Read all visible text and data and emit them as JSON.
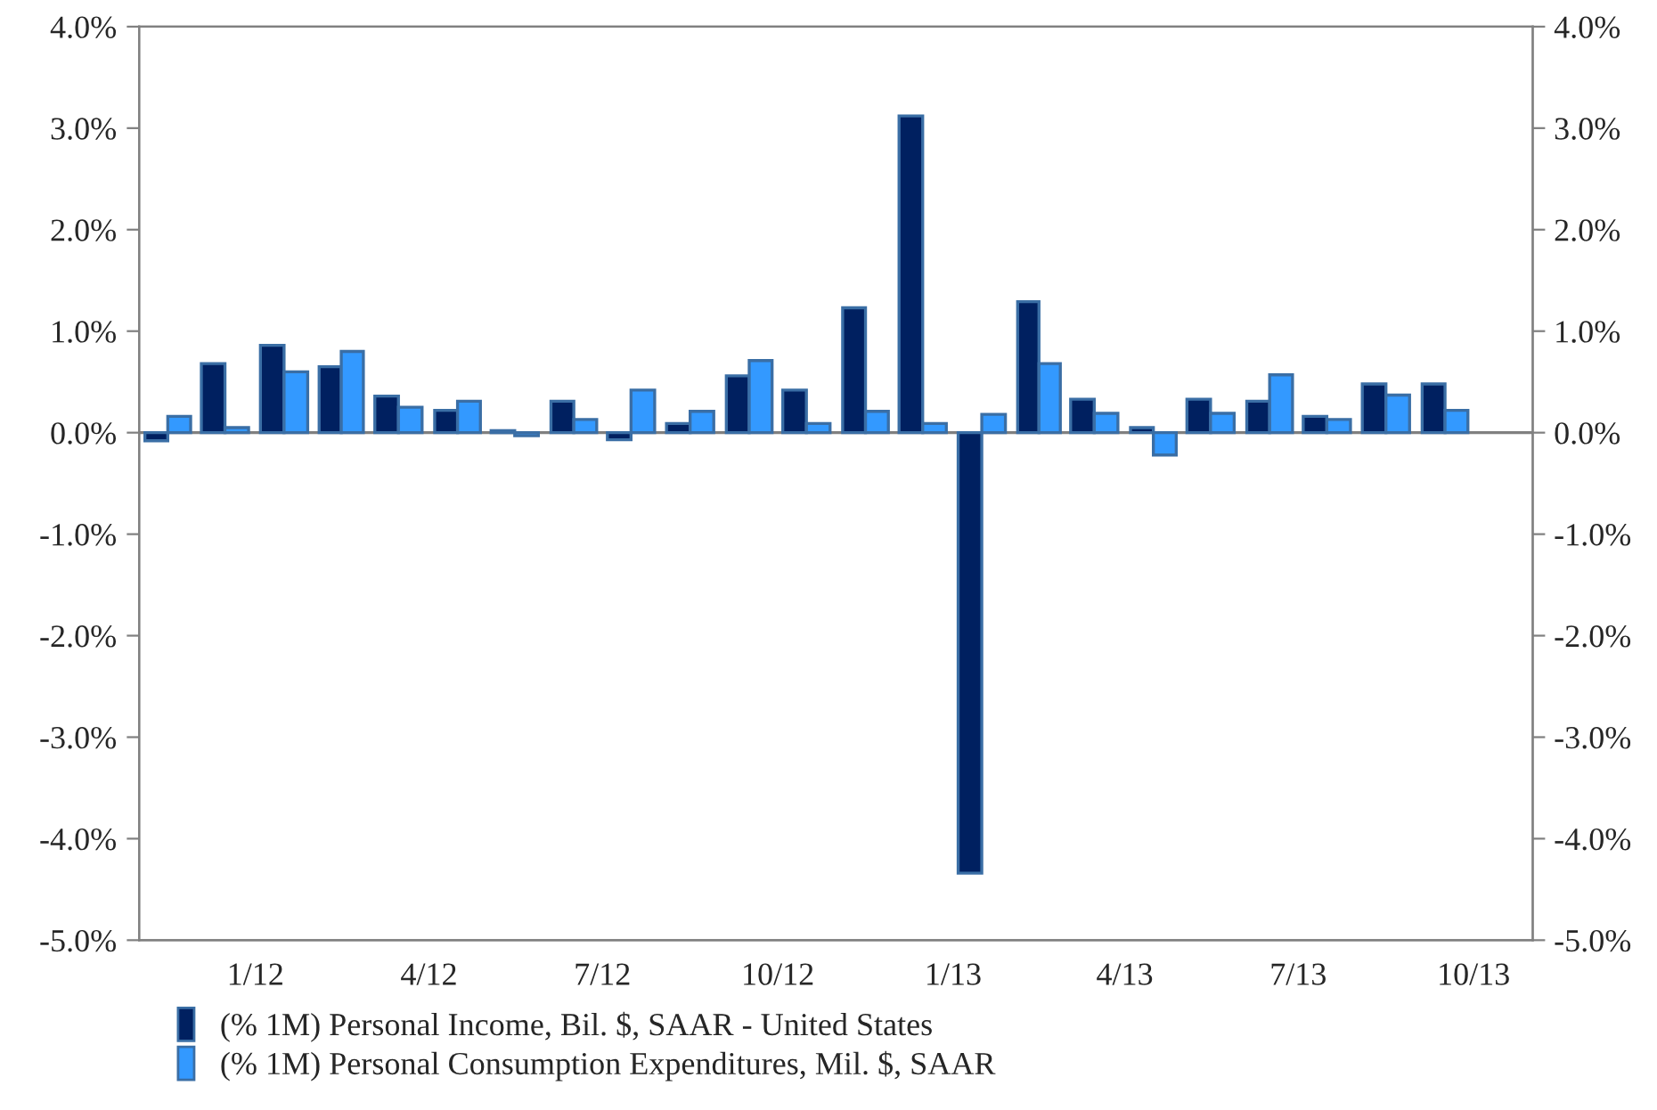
{
  "chart_data": {
    "type": "bar",
    "x": [
      "2011-11-16",
      "2011-12-16",
      "2012-01-16",
      "2012-02-15",
      "2012-03-16",
      "2012-04-16",
      "2012-05-16",
      "2012-06-16",
      "2012-07-16",
      "2012-08-16",
      "2012-09-16",
      "2012-10-16",
      "2012-11-16",
      "2012-12-16",
      "2013-01-16",
      "2013-02-15",
      "2013-03-16",
      "2013-04-16",
      "2013-05-16",
      "2013-06-16",
      "2013-07-16",
      "2013-08-16",
      "2013-09-16"
    ],
    "series": [
      {
        "name": "(% 1M) Personal Income, Bil. $, SAAR - United States",
        "color": "#002060",
        "values": [
          -0.08,
          0.68,
          0.86,
          0.65,
          0.36,
          0.22,
          0.02,
          0.31,
          -0.07,
          0.09,
          0.56,
          0.42,
          1.23,
          3.12,
          -4.34,
          1.29,
          0.33,
          0.05,
          0.33,
          0.31,
          0.16,
          0.48,
          0.48
        ]
      },
      {
        "name": "(% 1M) Personal Consumption Expenditures, Mil. $, SAAR",
        "color": "#3399ff",
        "values": [
          0.16,
          0.05,
          0.6,
          0.8,
          0.25,
          0.31,
          -0.03,
          0.13,
          0.42,
          0.21,
          0.71,
          0.09,
          0.21,
          0.09,
          0.18,
          0.68,
          0.19,
          -0.22,
          0.19,
          0.57,
          0.13,
          0.37,
          0.22
        ]
      }
    ],
    "xlim": [
      "2011-11",
      "2013-11"
    ],
    "xticks": [
      {
        "value": "2012-01",
        "label": "1/12"
      },
      {
        "value": "2012-04",
        "label": "4/12"
      },
      {
        "value": "2012-07",
        "label": "7/12"
      },
      {
        "value": "2012-10",
        "label": "10/12"
      },
      {
        "value": "2013-01",
        "label": "1/13"
      },
      {
        "value": "2013-04",
        "label": "4/13"
      },
      {
        "value": "2013-07",
        "label": "7/13"
      },
      {
        "value": "2013-10",
        "label": "10/13"
      }
    ],
    "ylim": [
      -5,
      4
    ],
    "yticks": [
      {
        "value": -5,
        "label": "-5.0%"
      },
      {
        "value": -4,
        "label": "-4.0%"
      },
      {
        "value": -3,
        "label": "-3.0%"
      },
      {
        "value": -2,
        "label": "-2.0%"
      },
      {
        "value": -1,
        "label": "-1.0%"
      },
      {
        "value": 0,
        "label": "0.0%"
      },
      {
        "value": 1,
        "label": "1.0%"
      },
      {
        "value": 2,
        "label": "2.0%"
      },
      {
        "value": 3,
        "label": "3.0%"
      },
      {
        "value": 4,
        "label": "4.0%"
      }
    ],
    "y2lim": [
      -5,
      4
    ],
    "y2ticks": [
      {
        "value": -5,
        "label": "-5.0%"
      },
      {
        "value": -4,
        "label": "-4.0%"
      },
      {
        "value": -3,
        "label": "-3.0%"
      },
      {
        "value": -2,
        "label": "-2.0%"
      },
      {
        "value": -1,
        "label": "-1.0%"
      },
      {
        "value": 0,
        "label": "0.0%"
      },
      {
        "value": 1,
        "label": "1.0%"
      },
      {
        "value": 2,
        "label": "2.0%"
      },
      {
        "value": 3,
        "label": "3.0%"
      },
      {
        "value": 4,
        "label": "4.0%"
      }
    ],
    "ref_lines": [
      {
        "axis": "y",
        "value": 0,
        "color": "#808080"
      }
    ],
    "grid": false,
    "legend": "bottom"
  }
}
